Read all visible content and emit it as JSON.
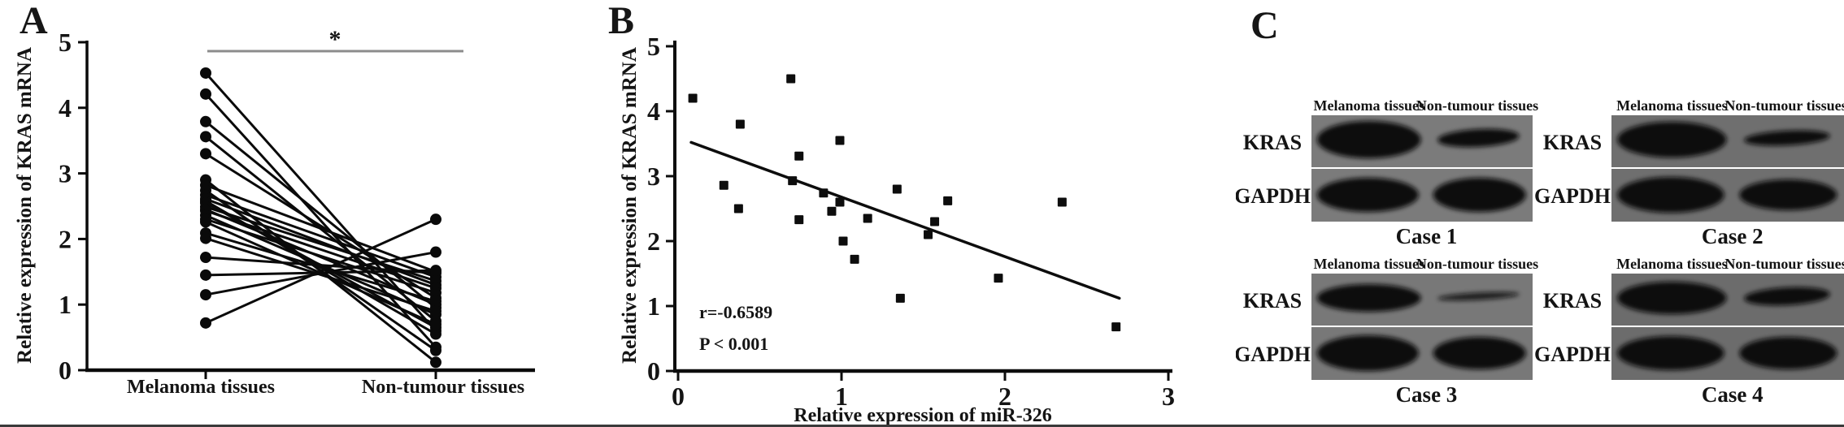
{
  "chart_data": [
    {
      "type": "line",
      "panel": "A",
      "title": "A",
      "chart_kind": "paired-before-after-plot",
      "ylabel": "Relative expression of KRAS mRNA",
      "categories": [
        "Melanoma tissues",
        "Non-tumour tissues"
      ],
      "ylim": [
        0,
        5
      ],
      "yticks": [
        0,
        1,
        2,
        3,
        4,
        5
      ],
      "significance_label": "*",
      "ink_color": "#0a0a0a",
      "significance_bar_color": "#8c8c8c",
      "pairs": [
        [
          4.53,
          0.6
        ],
        [
          4.21,
          0.35
        ],
        [
          3.79,
          0.95
        ],
        [
          3.56,
          0.75
        ],
        [
          3.3,
          1.1
        ],
        [
          2.9,
          0.12
        ],
        [
          2.82,
          1.5
        ],
        [
          2.74,
          0.3
        ],
        [
          2.67,
          1.42
        ],
        [
          2.61,
          1.3
        ],
        [
          2.58,
          0.55
        ],
        [
          2.55,
          0.65
        ],
        [
          2.49,
          1.36
        ],
        [
          2.45,
          1.0
        ],
        [
          2.43,
          1.25
        ],
        [
          2.36,
          0.85
        ],
        [
          2.3,
          1.18
        ],
        [
          2.26,
          0.7
        ],
        [
          2.09,
          1.05
        ],
        [
          2.01,
          0.9
        ],
        [
          1.72,
          1.48
        ],
        [
          1.45,
          1.52
        ],
        [
          1.15,
          1.8
        ],
        [
          0.72,
          2.3
        ]
      ]
    },
    {
      "type": "scatter",
      "panel": "B",
      "title": "B",
      "xlabel": "Relative expression of miR-326",
      "ylabel": "Relative expression of KRAS mRNA",
      "xlim": [
        0,
        3
      ],
      "ylim": [
        0,
        5
      ],
      "xticks": [
        0,
        1,
        2,
        3
      ],
      "yticks": [
        0,
        1,
        2,
        3,
        4,
        5
      ],
      "annotations": [
        "r=-0.6589",
        "P < 0.001"
      ],
      "marker": "square",
      "ink_color": "#0d0d0d",
      "points": [
        [
          0.09,
          4.2
        ],
        [
          0.69,
          4.5
        ],
        [
          0.38,
          3.8
        ],
        [
          0.99,
          3.55
        ],
        [
          0.74,
          3.31
        ],
        [
          0.7,
          2.93
        ],
        [
          0.28,
          2.86
        ],
        [
          0.89,
          2.74
        ],
        [
          0.99,
          2.6
        ],
        [
          0.94,
          2.46
        ],
        [
          0.37,
          2.5
        ],
        [
          0.74,
          2.33
        ],
        [
          1.16,
          2.35
        ],
        [
          1.34,
          2.8
        ],
        [
          1.65,
          2.62
        ],
        [
          2.35,
          2.6
        ],
        [
          1.57,
          2.3
        ],
        [
          1.53,
          2.1
        ],
        [
          1.01,
          2.0
        ],
        [
          1.08,
          1.72
        ],
        [
          1.96,
          1.43
        ],
        [
          1.36,
          1.12
        ],
        [
          2.68,
          0.68
        ]
      ],
      "trendline": {
        "x1": 0.08,
        "y1": 3.52,
        "x2": 2.7,
        "y2": 1.12
      }
    }
  ],
  "panelC": {
    "title": "C",
    "col_headers": [
      "Melanoma tissues",
      "Non-tumour tissues"
    ],
    "row_labels": [
      "KRAS",
      "GAPDH"
    ],
    "band_color": "#0e0e0e",
    "blot_bg_colors": [
      "#7b7b7b",
      "#6f6f6f",
      "#787878",
      "#6c6c6c"
    ],
    "cases": [
      {
        "label": "Case 1",
        "kras_band_heights": [
          46,
          22
        ],
        "gapdh_band_heights": [
          42,
          42
        ],
        "kras_non_opacity": 1
      },
      {
        "label": "Case 2",
        "kras_band_heights": [
          44,
          18
        ],
        "gapdh_band_heights": [
          44,
          38
        ],
        "kras_non_opacity": 1
      },
      {
        "label": "Case 3",
        "kras_band_heights": [
          34,
          9
        ],
        "gapdh_band_heights": [
          44,
          40
        ],
        "kras_non_opacity": 0.85
      },
      {
        "label": "Case 4",
        "kras_band_heights": [
          40,
          22
        ],
        "gapdh_band_heights": [
          42,
          40
        ],
        "kras_non_opacity": 1
      }
    ]
  }
}
